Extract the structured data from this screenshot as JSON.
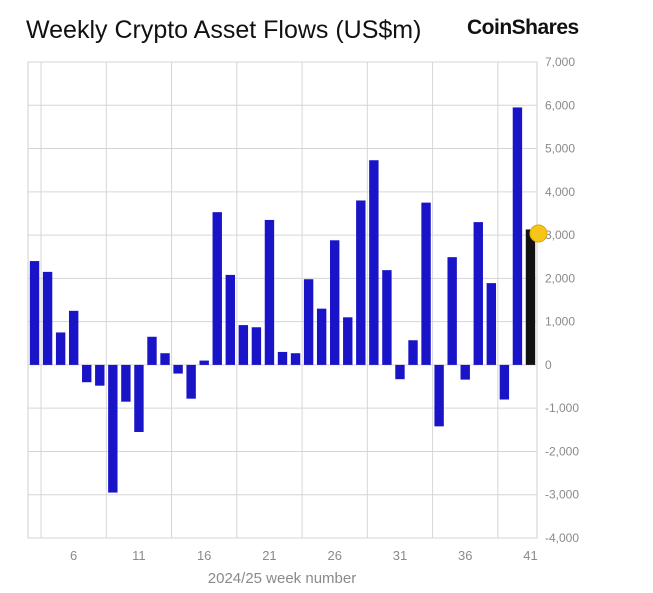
{
  "header": {
    "title": "Weekly Crypto Asset Flows (US$m)",
    "brand": "CoinShares"
  },
  "chart_data": {
    "type": "bar",
    "title": "Weekly Crypto Asset Flows (US$m)",
    "xlabel": "2024/25 week number",
    "ylabel": "",
    "ylim": [
      -4000,
      7000
    ],
    "yticks": [
      7000,
      6000,
      5000,
      4000,
      3000,
      2000,
      1000,
      0,
      -1000,
      -2000,
      -3000,
      -4000
    ],
    "ytick_labels": [
      "7,000",
      "6,000",
      "5,000",
      "4,000",
      "3,000",
      "2,000",
      "1,000",
      "0",
      "-1,000",
      "-2,000",
      "-3,000",
      "-4,000"
    ],
    "x_tick_labels": [
      "6",
      "11",
      "16",
      "21",
      "26",
      "31",
      "36",
      "41"
    ],
    "x_tick_weeks": [
      6,
      11,
      16,
      21,
      26,
      31,
      36,
      41
    ],
    "x_gridline_weeks": [
      3.5,
      8.5,
      13.5,
      18.5,
      23.5,
      28.5,
      33.5,
      38.5
    ],
    "grid": true,
    "bar_color": "#1a14c8",
    "highlight_color": "#f5c518",
    "weeks": [
      3,
      4,
      5,
      6,
      7,
      8,
      9,
      10,
      11,
      12,
      13,
      14,
      15,
      16,
      17,
      18,
      19,
      20,
      21,
      22,
      23,
      24,
      25,
      26,
      27,
      28,
      29,
      30,
      31,
      32,
      33,
      34,
      35,
      36,
      37,
      38,
      39,
      40,
      41
    ],
    "values": [
      2400,
      2150,
      750,
      1250,
      -400,
      -480,
      -2950,
      -850,
      -1550,
      650,
      270,
      -200,
      -780,
      100,
      3530,
      2080,
      920,
      870,
      3350,
      300,
      270,
      1980,
      1300,
      2880,
      1100,
      3800,
      4730,
      2190,
      -330,
      570,
      3750,
      -1420,
      2490,
      -340,
      3300,
      1890,
      -800,
      5950,
      3130
    ],
    "highlight_index": 38
  }
}
